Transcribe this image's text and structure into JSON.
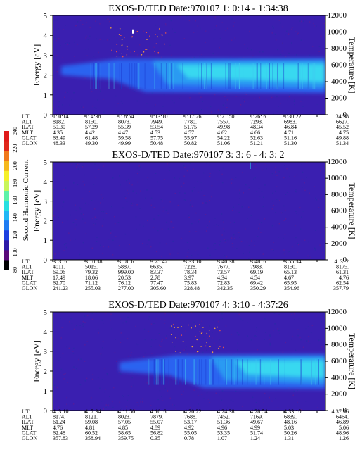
{
  "chart_data": [
    {
      "type": "heatmap",
      "title": "EXOS-D/TED   Date:970107   1: 0:14 - 1:34:38",
      "ylabel": "Energy [eV]",
      "ylabel_right": "Temperature [K]",
      "ylim": [
        0,
        5
      ],
      "ylim_right": [
        0,
        12000
      ],
      "yticks": [
        "0",
        "1",
        "2",
        "3",
        "4",
        "5"
      ],
      "yticks_right": [
        "0",
        "2000",
        "4000",
        "6000",
        "8000",
        "10000",
        "12000"
      ],
      "rows": [
        {
          "label": "UT",
          "values": [
            "1: 0:14",
            "1: 4:38",
            "1: 8:54",
            "1:13:10",
            "1:17:26",
            "1:21:50",
            "1:26: 6",
            "1:30:22",
            "1:34:38"
          ]
        },
        {
          "label": "ALT",
          "values": [
            "8182.",
            "8150.",
            "8073.",
            "7949.",
            "7780.",
            "7557.",
            "7293.",
            "6983.",
            "6627."
          ]
        },
        {
          "label": "ILAT",
          "values": [
            "59.30",
            "57.29",
            "55.39",
            "53.54",
            "51.75",
            "49.98",
            "48.34",
            "46.84",
            "45.52"
          ]
        },
        {
          "label": "MLT",
          "values": [
            "4.35",
            "4.42",
            "4.47",
            "4.53",
            "4.57",
            "4.62",
            "4.66",
            "4.71",
            "4.75"
          ]
        },
        {
          "label": "GLAT",
          "values": [
            "63.49",
            "61.48",
            "59.58",
            "57.75",
            "55.97",
            "54.22",
            "52.63",
            "51.16",
            "49.88"
          ]
        },
        {
          "label": "GLON",
          "values": [
            "48.33",
            "49.30",
            "49.99",
            "50.48",
            "50.82",
            "51.06",
            "51.21",
            "51.30",
            "51.34"
          ]
        }
      ]
    },
    {
      "type": "heatmap",
      "title": "EXOS-D/TED   Date:970107   3: 3: 6 - 4: 3: 2",
      "ylabel": "Energy [eV]",
      "ylabel_right": "Temperature [K]",
      "ylim": [
        0,
        5
      ],
      "ylim_right": [
        0,
        12000
      ],
      "yticks": [
        "0",
        "1",
        "2",
        "3",
        "4",
        "5"
      ],
      "yticks_right": [
        "0",
        "2000",
        "4000",
        "6000",
        "8000",
        "10000",
        "12000"
      ],
      "rows": [
        {
          "label": "UT",
          "values": [
            "3: 3: 6",
            "3:10:38",
            "3:18: 6",
            "3:25:42",
            "3:33:10",
            "3:40:38",
            "3:48: 6",
            "3:55:34",
            "4: 3: 2"
          ]
        },
        {
          "label": "ALT",
          "values": [
            "4011.",
            "5015.",
            "5887.",
            "6635.",
            "7228.",
            "7677.",
            "7983.",
            "8150.",
            "8175."
          ]
        },
        {
          "label": "ILAT",
          "values": [
            "69.06",
            "79.32",
            "999.00",
            "83.37",
            "78.34",
            "73.57",
            "69.19",
            "65.13",
            "61.31"
          ]
        },
        {
          "label": "MLT",
          "values": [
            "17.49",
            "18.06",
            "20.53",
            "2.78",
            "3.97",
            "4.34",
            "4.54",
            "4.67",
            "4.76"
          ]
        },
        {
          "label": "GLAT",
          "values": [
            "62.70",
            "71.12",
            "76.12",
            "77.47",
            "75.83",
            "72.83",
            "69.42",
            "65.95",
            "62.54"
          ]
        },
        {
          "label": "GLON",
          "values": [
            "241.23",
            "255.03",
            "277.00",
            "305.60",
            "328.48",
            "342.35",
            "350.29",
            "354.96",
            "357.79"
          ]
        }
      ]
    },
    {
      "type": "heatmap",
      "title": "EXOS-D/TED   Date:970107   4: 3:10 - 4:37:26",
      "ylabel": "Energy [eV]",
      "ylabel_right": "Temperature [K]",
      "ylim": [
        0,
        5
      ],
      "ylim_right": [
        0,
        12000
      ],
      "yticks": [
        "0",
        "1",
        "2",
        "3",
        "4",
        "5"
      ],
      "yticks_right": [
        "0",
        "2000",
        "4000",
        "6000",
        "8000",
        "10000",
        "12000"
      ],
      "rows": [
        {
          "label": "UT",
          "values": [
            "4: 3:10",
            "4: 7:34",
            "4:11:50",
            "4:16: 6",
            "4:20:22",
            "4:24:38",
            "4:28:54",
            "4:33:10",
            "4:37:26"
          ]
        },
        {
          "label": "ALT",
          "values": [
            "8174.",
            "8121.",
            "8023.",
            "7879.",
            "7688.",
            "7452.",
            "7169.",
            "6839.",
            "6464."
          ]
        },
        {
          "label": "ILAT",
          "values": [
            "61.24",
            "59.08",
            "57.05",
            "55.07",
            "53.17",
            "51.36",
            "49.67",
            "48.16",
            "46.89"
          ]
        },
        {
          "label": "MLT",
          "values": [
            "4.76",
            "4.81",
            "4.85",
            "4.89",
            "4.92",
            "4.96",
            "4.99",
            "5.03",
            "5.06"
          ]
        },
        {
          "label": "GLAT",
          "values": [
            "62.48",
            "60.52",
            "58.65",
            "56.82",
            "55.05",
            "53.35",
            "51.74",
            "50.26",
            "48.96"
          ]
        },
        {
          "label": "GLON",
          "values": [
            "357.83",
            "358.94",
            "359.75",
            "0.35",
            "0.78",
            "1.07",
            "1.24",
            "1.31",
            "1.26"
          ]
        }
      ]
    }
  ],
  "colorbar": {
    "label": "Second Harmonic Current",
    "ticks": [
      "80",
      "100",
      "120",
      "140",
      "160",
      "180",
      "200",
      "220",
      "240"
    ],
    "colors": [
      "#000000",
      "#5a0a7a",
      "#2d1aa8",
      "#1d3fe0",
      "#1f7cf2",
      "#20b8f5",
      "#26e0e0",
      "#5cf2a8",
      "#c8f55a",
      "#f5f02a",
      "#f5b81e",
      "#f0781c",
      "#e0281c",
      "#e01a1a"
    ]
  },
  "colors": {
    "background_field": "#3a1fb0",
    "band_blue": "#2a64f0",
    "band_cyan": "#38d8f0"
  }
}
